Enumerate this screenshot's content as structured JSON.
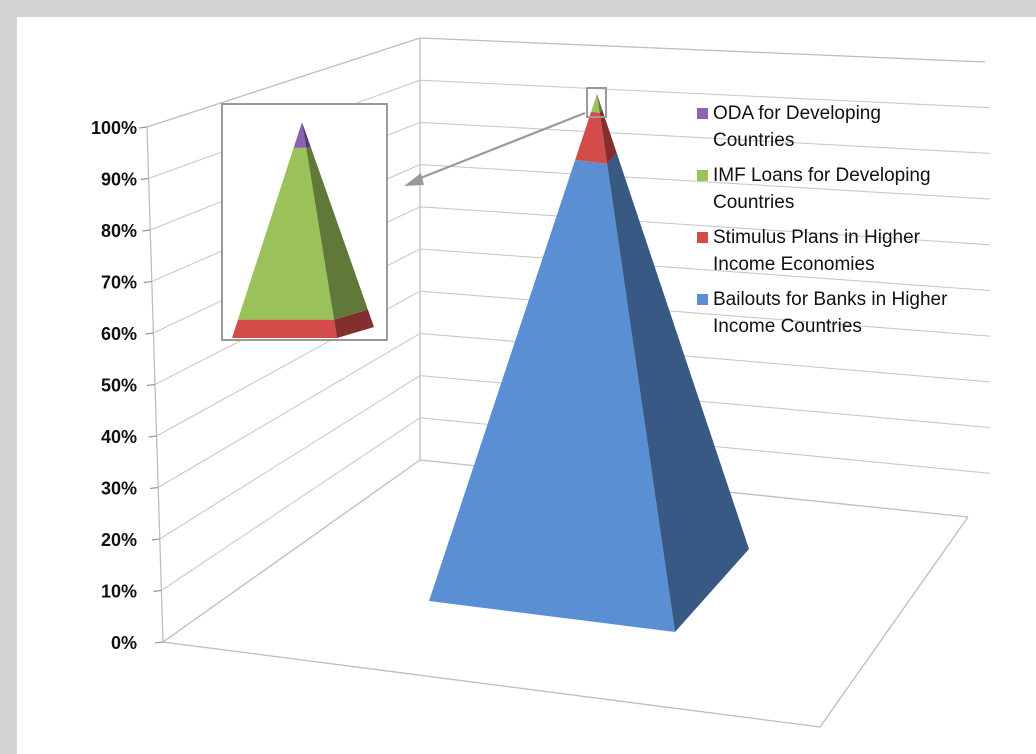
{
  "chart_data": {
    "type": "3d-stacked-pyramid",
    "title": "",
    "xlabel": "",
    "ylabel": "",
    "ylim": [
      0,
      100
    ],
    "y_ticks": [
      "0%",
      "10%",
      "20%",
      "30%",
      "40%",
      "50%",
      "60%",
      "70%",
      "80%",
      "90%",
      "100%"
    ],
    "series": [
      {
        "name": "Bailouts for Banks in Higher Income Countries",
        "value": 87,
        "color": "#5b8fd4"
      },
      {
        "name": "Stimulus Plans in Higher Income Economies",
        "value": 9.5,
        "color": "#d44c4a"
      },
      {
        "name": "IMF Loans for Developing Countries",
        "value": 3,
        "color": "#9bc15a"
      },
      {
        "name": "ODA for Developing Countries",
        "value": 0.5,
        "color": "#8a63b4"
      }
    ],
    "legend": {
      "placement": "right",
      "items": [
        {
          "label_lines": [
            "ODA for Developing",
            "Countries"
          ],
          "color": "#8a63b4"
        },
        {
          "label_lines": [
            "IMF Loans for Developing",
            "Countries"
          ],
          "color": "#9bc15a"
        },
        {
          "label_lines": [
            "Stimulus Plans in Higher",
            "Income Economies"
          ],
          "color": "#d44c4a"
        },
        {
          "label_lines": [
            "Bailouts for Banks in Higher",
            "Income Countries"
          ],
          "color": "#5b8fd4"
        }
      ]
    },
    "inset": {
      "description_shown": "magnified pyramid tip"
    }
  }
}
